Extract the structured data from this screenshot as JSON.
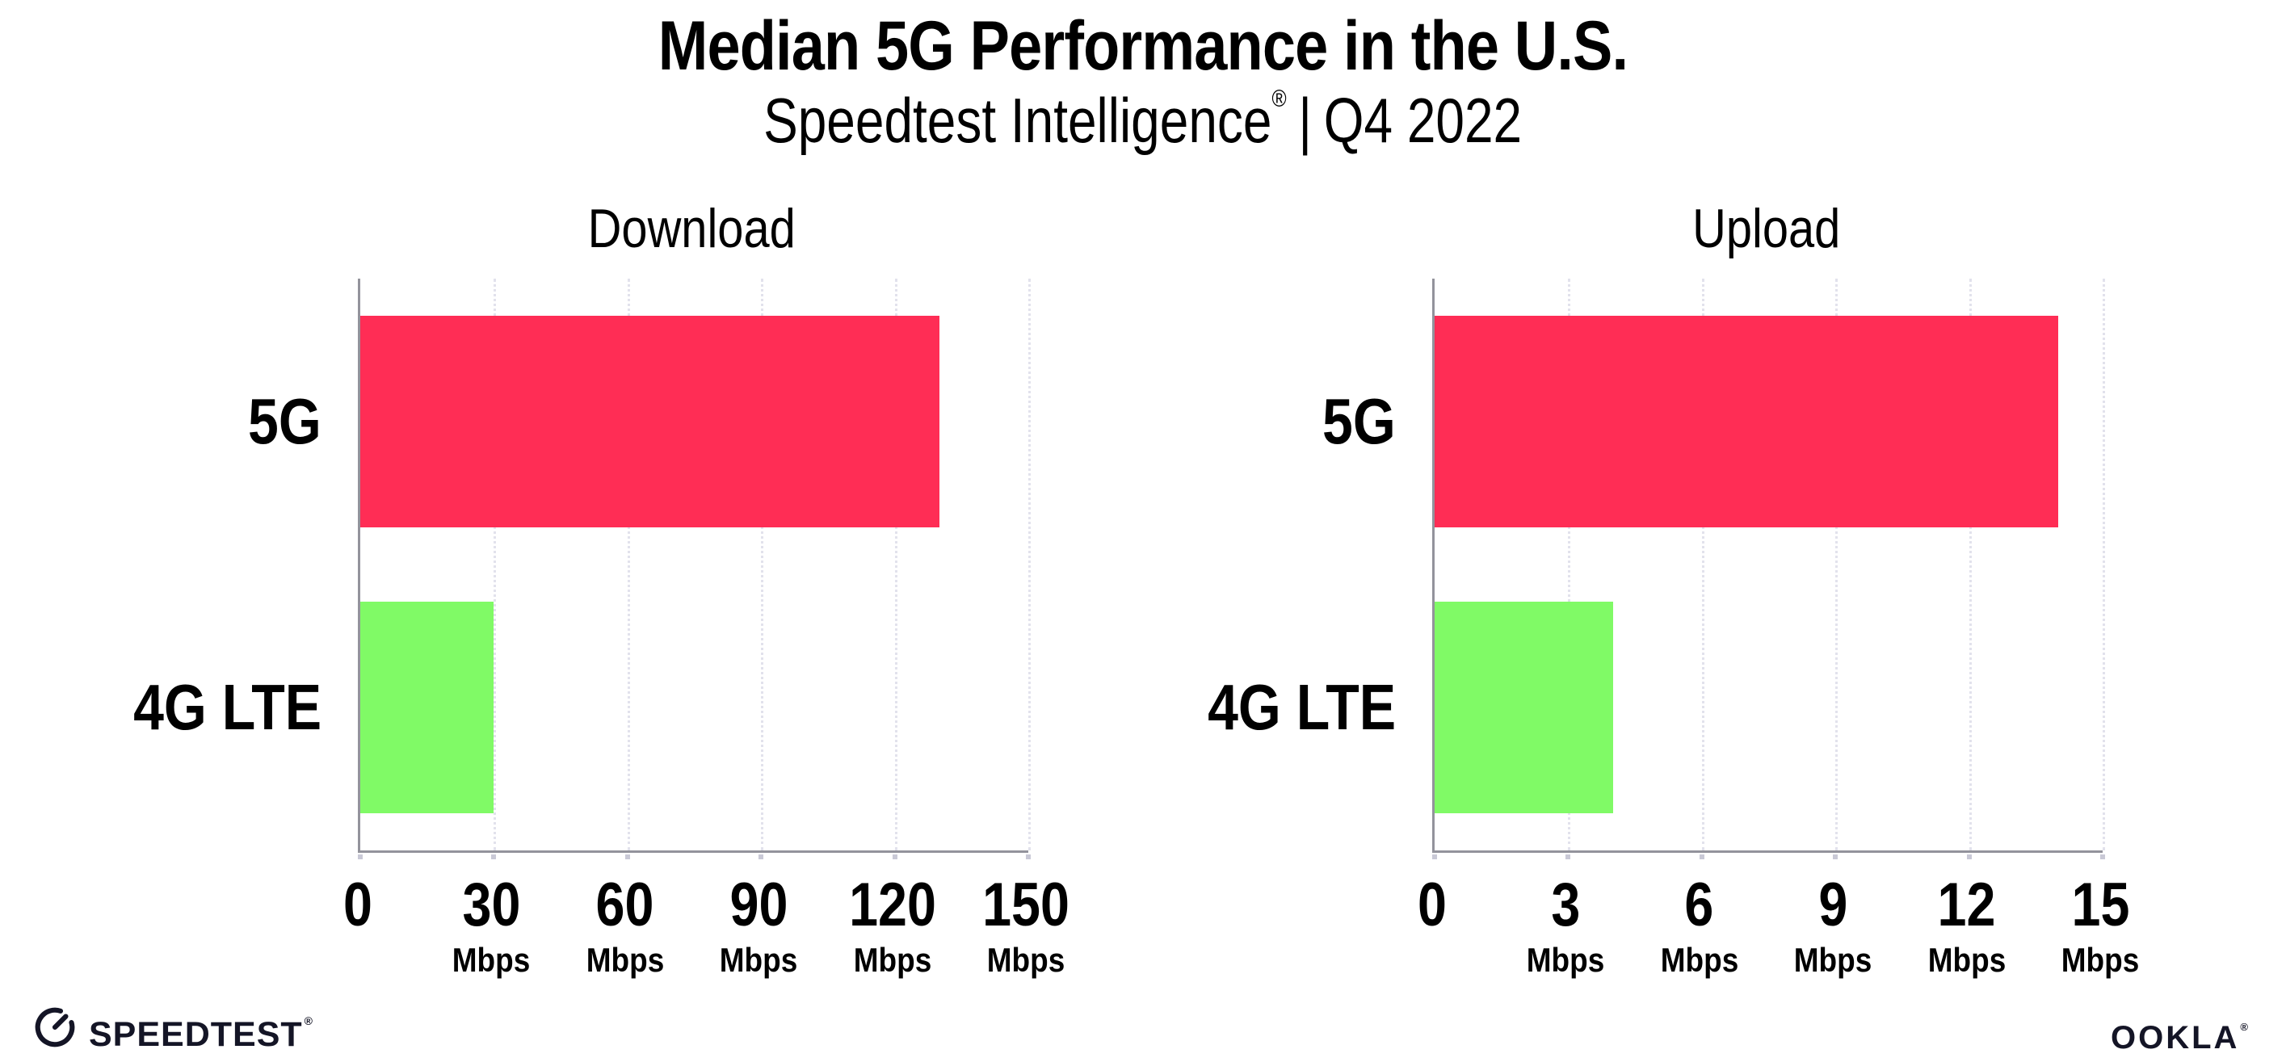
{
  "header": {
    "title": "Median 5G Performance in the U.S.",
    "subtitle_brand": "Speedtest Intelligence",
    "subtitle_reg": "®",
    "subtitle_sep": "|",
    "subtitle_period": "Q4 2022"
  },
  "colors": {
    "bar_5g": "#FF2D55",
    "bar_4g_lte": "#80FA66",
    "axis_line": "#93939c",
    "gridline": "#e2e2ec",
    "text": "#000000",
    "logo_ink": "#141526"
  },
  "chart_data": [
    {
      "type": "bar",
      "orientation": "horizontal",
      "title": "Download",
      "categories": [
        "5G",
        "4G LTE"
      ],
      "values": [
        130,
        30
      ],
      "unit": "Mbps",
      "xlim": [
        0,
        150
      ],
      "xticks": [
        0,
        30,
        60,
        90,
        120,
        150
      ],
      "grid": "vertical-dotted",
      "legend": "none",
      "bar_colors": [
        "#FF2D55",
        "#80FA66"
      ]
    },
    {
      "type": "bar",
      "orientation": "horizontal",
      "title": "Upload",
      "categories": [
        "5G",
        "4G LTE"
      ],
      "values": [
        14,
        4
      ],
      "unit": "Mbps",
      "xlim": [
        0,
        15
      ],
      "xticks": [
        0,
        3,
        6,
        9,
        12,
        15
      ],
      "grid": "vertical-dotted",
      "legend": "none",
      "bar_colors": [
        "#FF2D55",
        "#80FA66"
      ]
    }
  ],
  "footer": {
    "speedtest_logo_text": "SPEEDTEST",
    "speedtest_trademark": "®",
    "ookla_logo_text": "OOKLA",
    "ookla_trademark": "®"
  }
}
